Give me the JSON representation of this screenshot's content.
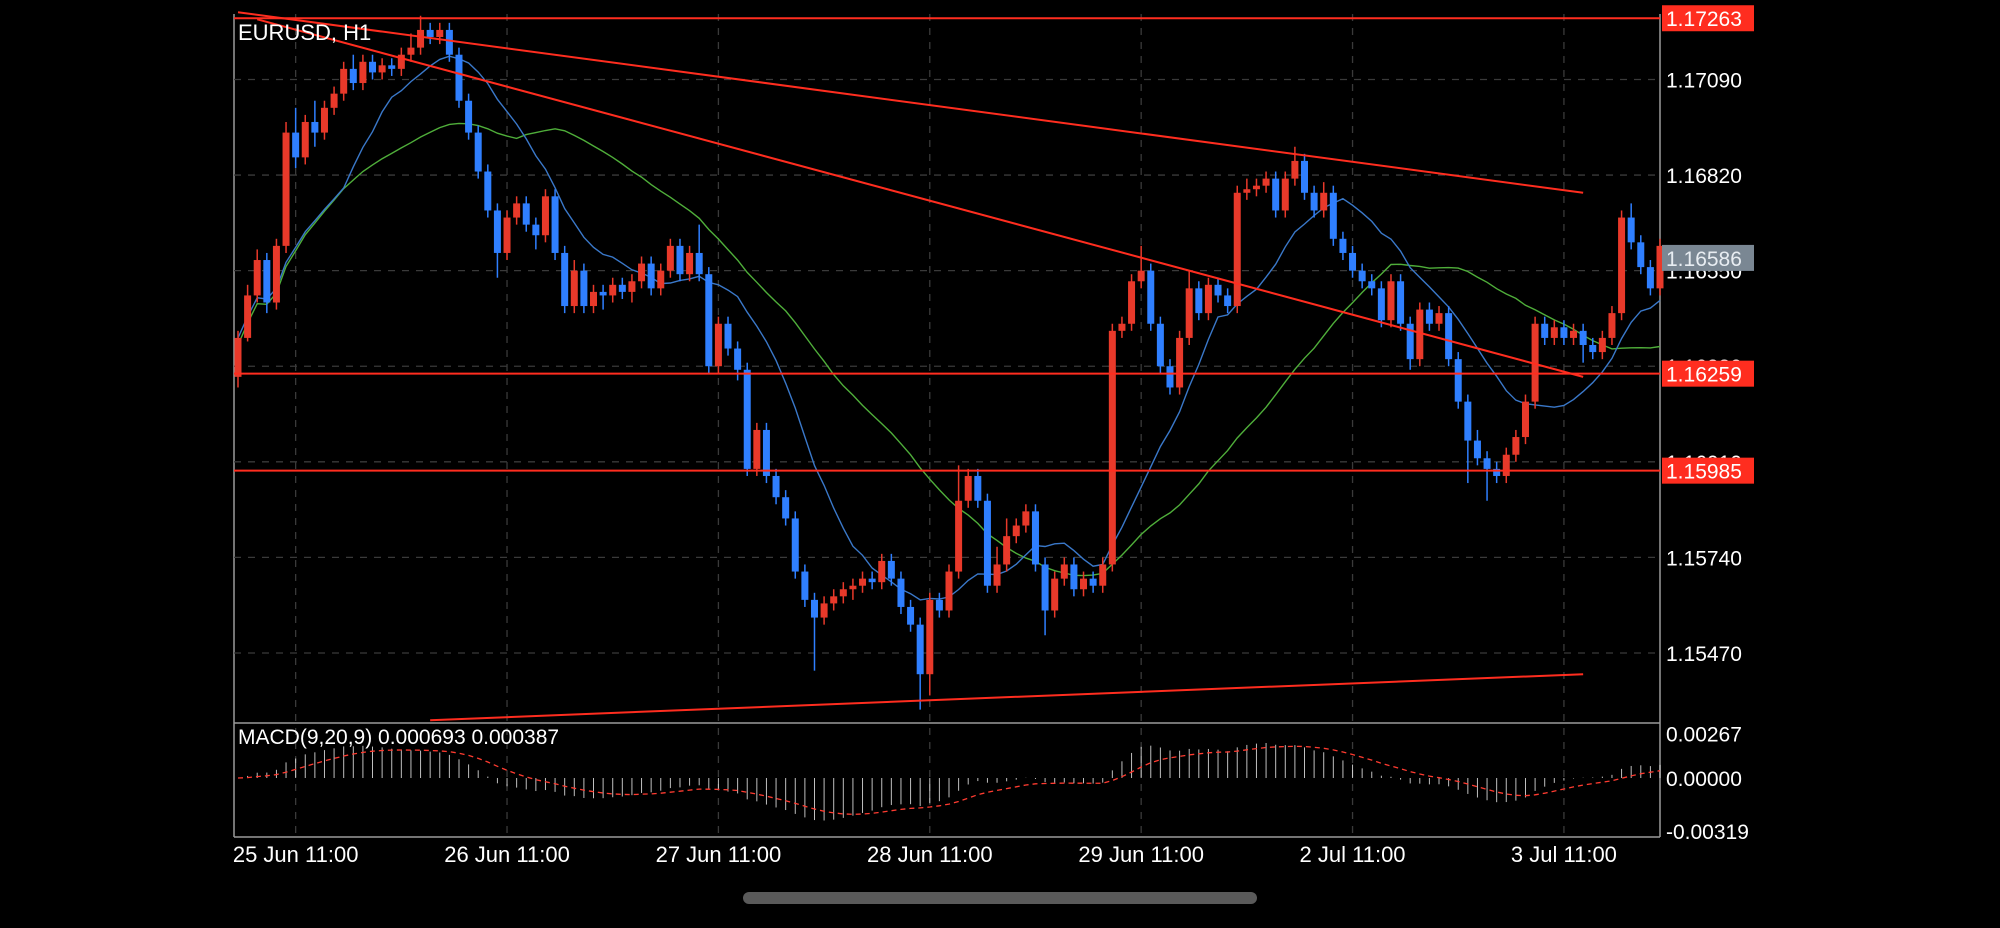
{
  "chart_data": [
    {
      "type": "candlestick",
      "symbol_label": "EURUSD, H1",
      "timeframe": "H1",
      "y_axis_ticks": [
        "1.17090",
        "1.16820",
        "1.16550",
        "1.16280",
        "1.16010",
        "1.15740",
        "1.15470"
      ],
      "ylim": [
        1.15275,
        1.17275
      ],
      "x_axis_labels": [
        "25 Jun 11:00",
        "26 Jun 11:00",
        "27 Jun 11:00",
        "28 Jun 11:00",
        "29 Jun 11:00",
        "2 Jul 11:00",
        "3 Jul 11:00"
      ],
      "price_tags": [
        {
          "price": 1.17263,
          "label": "1.17263",
          "kind": "line",
          "color": "#ff2d1f"
        },
        {
          "price": 1.16586,
          "label": "1.16586",
          "kind": "bid",
          "color": "#7a8793"
        },
        {
          "price": 1.16259,
          "label": "1.16259",
          "kind": "line",
          "color": "#ff2d1f"
        },
        {
          "price": 1.15985,
          "label": "1.15985",
          "kind": "line",
          "color": "#ff2d1f"
        }
      ],
      "horizontal_lines": [
        1.17263,
        1.16259,
        1.15985
      ],
      "trendlines": [
        {
          "from": [
            0,
            1.1728
          ],
          "to": [
            140,
            1.1677
          ]
        },
        {
          "from": [
            2,
            1.1726
          ],
          "to": [
            140,
            1.1625
          ]
        },
        {
          "from": [
            20,
            1.1528
          ],
          "to": [
            140,
            1.1541
          ]
        }
      ],
      "candles": [
        [
          1.1625,
          1.1636,
          1.1622,
          1.1638
        ],
        [
          1.1636,
          1.1648,
          1.1635,
          1.1651
        ],
        [
          1.1648,
          1.1658,
          1.1646,
          1.1661
        ],
        [
          1.1658,
          1.1646,
          1.1643,
          1.166
        ],
        [
          1.1646,
          1.1662,
          1.1644,
          1.1664
        ],
        [
          1.1662,
          1.1694,
          1.166,
          1.1697
        ],
        [
          1.1694,
          1.1687,
          1.1684,
          1.1701
        ],
        [
          1.1687,
          1.1697,
          1.1685,
          1.1699
        ],
        [
          1.1697,
          1.1694,
          1.169,
          1.1703
        ],
        [
          1.1694,
          1.1701,
          1.1692,
          1.1703
        ],
        [
          1.1701,
          1.1705,
          1.1699,
          1.1707
        ],
        [
          1.1705,
          1.1712,
          1.1703,
          1.1714
        ],
        [
          1.1712,
          1.1708,
          1.1706,
          1.1716
        ],
        [
          1.1708,
          1.1714,
          1.1706,
          1.1716
        ],
        [
          1.1714,
          1.1711,
          1.1709,
          1.1716
        ],
        [
          1.1711,
          1.1713,
          1.1709,
          1.1715
        ],
        [
          1.1713,
          1.1712,
          1.171,
          1.1715
        ],
        [
          1.1712,
          1.1716,
          1.171,
          1.1718
        ],
        [
          1.1716,
          1.1718,
          1.1714,
          1.1722
        ],
        [
          1.1718,
          1.1723,
          1.1716,
          1.1727
        ],
        [
          1.1723,
          1.1721,
          1.1719,
          1.1725
        ],
        [
          1.1721,
          1.1723,
          1.1719,
          1.1725
        ],
        [
          1.1723,
          1.1716,
          1.1714,
          1.1725
        ],
        [
          1.1716,
          1.1703,
          1.1701,
          1.1718
        ],
        [
          1.1703,
          1.1694,
          1.1692,
          1.1705
        ],
        [
          1.1694,
          1.1683,
          1.1681,
          1.1696
        ],
        [
          1.1683,
          1.1672,
          1.167,
          1.1685
        ],
        [
          1.1672,
          1.166,
          1.1653,
          1.1674
        ],
        [
          1.166,
          1.167,
          1.1658,
          1.1672
        ],
        [
          1.167,
          1.1674,
          1.1668,
          1.1676
        ],
        [
          1.1674,
          1.1668,
          1.1666,
          1.1676
        ],
        [
          1.1668,
          1.1665,
          1.1661,
          1.167
        ],
        [
          1.1665,
          1.1676,
          1.1663,
          1.1678
        ],
        [
          1.1676,
          1.166,
          1.1658,
          1.1678
        ],
        [
          1.166,
          1.1645,
          1.1643,
          1.1662
        ],
        [
          1.1645,
          1.1655,
          1.1643,
          1.1658
        ],
        [
          1.1655,
          1.1645,
          1.1643,
          1.1657
        ],
        [
          1.1645,
          1.1649,
          1.1643,
          1.1651
        ],
        [
          1.1649,
          1.1648,
          1.1644,
          1.1651
        ],
        [
          1.1648,
          1.1651,
          1.1646,
          1.1653
        ],
        [
          1.1651,
          1.1649,
          1.1647,
          1.1653
        ],
        [
          1.1649,
          1.1652,
          1.1646,
          1.1654
        ],
        [
          1.1652,
          1.1657,
          1.165,
          1.1659
        ],
        [
          1.1657,
          1.165,
          1.1648,
          1.1659
        ],
        [
          1.165,
          1.1655,
          1.1648,
          1.1657
        ],
        [
          1.1655,
          1.1662,
          1.1653,
          1.1664
        ],
        [
          1.1662,
          1.1654,
          1.1652,
          1.1664
        ],
        [
          1.1654,
          1.166,
          1.1652,
          1.1662
        ],
        [
          1.166,
          1.1654,
          1.1652,
          1.1668
        ],
        [
          1.1654,
          1.1628,
          1.1626,
          1.1656
        ],
        [
          1.1628,
          1.164,
          1.1626,
          1.1642
        ],
        [
          1.164,
          1.1633,
          1.1631,
          1.1642
        ],
        [
          1.1633,
          1.1627,
          1.1624,
          1.1635
        ],
        [
          1.1627,
          1.1599,
          1.1597,
          1.1629
        ],
        [
          1.1599,
          1.161,
          1.1597,
          1.1612
        ],
        [
          1.161,
          1.1597,
          1.1595,
          1.1612
        ],
        [
          1.1597,
          1.1591,
          1.1589,
          1.1599
        ],
        [
          1.1591,
          1.1585,
          1.1583,
          1.1593
        ],
        [
          1.1585,
          1.157,
          1.1568,
          1.1587
        ],
        [
          1.157,
          1.1562,
          1.156,
          1.1572
        ],
        [
          1.1562,
          1.1557,
          1.1542,
          1.1564
        ],
        [
          1.1557,
          1.1561,
          1.1555,
          1.1563
        ],
        [
          1.1561,
          1.1563,
          1.1559,
          1.1565
        ],
        [
          1.1563,
          1.1565,
          1.1561,
          1.1567
        ],
        [
          1.1565,
          1.1566,
          1.1562,
          1.1568
        ],
        [
          1.1566,
          1.1568,
          1.1564,
          1.157
        ],
        [
          1.1568,
          1.1567,
          1.1565,
          1.157
        ],
        [
          1.1567,
          1.1573,
          1.1565,
          1.1575
        ],
        [
          1.1573,
          1.1568,
          1.1566,
          1.1575
        ],
        [
          1.1568,
          1.156,
          1.1558,
          1.157
        ],
        [
          1.156,
          1.1555,
          1.1553,
          1.1562
        ],
        [
          1.1555,
          1.1541,
          1.1531,
          1.1557
        ],
        [
          1.1541,
          1.1562,
          1.1535,
          1.1564
        ],
        [
          1.1562,
          1.1559,
          1.1557,
          1.1564
        ],
        [
          1.1559,
          1.157,
          1.1557,
          1.1572
        ],
        [
          1.157,
          1.159,
          1.1568,
          1.16
        ],
        [
          1.159,
          1.1597,
          1.1588,
          1.1599
        ],
        [
          1.1597,
          1.159,
          1.1588,
          1.1599
        ],
        [
          1.159,
          1.1566,
          1.1564,
          1.1592
        ],
        [
          1.1566,
          1.1572,
          1.1564,
          1.1577
        ],
        [
          1.1572,
          1.158,
          1.157,
          1.1585
        ],
        [
          1.158,
          1.1583,
          1.1578,
          1.1585
        ],
        [
          1.1583,
          1.1587,
          1.1581,
          1.1589
        ],
        [
          1.1587,
          1.1572,
          1.157,
          1.1589
        ],
        [
          1.1572,
          1.1559,
          1.1552,
          1.1574
        ],
        [
          1.1559,
          1.1568,
          1.1557,
          1.157
        ],
        [
          1.1568,
          1.1572,
          1.1566,
          1.1574
        ],
        [
          1.1572,
          1.1565,
          1.1563,
          1.1574
        ],
        [
          1.1565,
          1.1568,
          1.1563,
          1.157
        ],
        [
          1.1568,
          1.1566,
          1.1564,
          1.157
        ],
        [
          1.1566,
          1.1572,
          1.1564,
          1.1574
        ],
        [
          1.1572,
          1.1638,
          1.157,
          1.164
        ],
        [
          1.1638,
          1.164,
          1.1636,
          1.1642
        ],
        [
          1.164,
          1.1652,
          1.1638,
          1.1654
        ],
        [
          1.1652,
          1.1655,
          1.165,
          1.1662
        ],
        [
          1.1655,
          1.164,
          1.1638,
          1.1657
        ],
        [
          1.164,
          1.1628,
          1.1626,
          1.1642
        ],
        [
          1.1628,
          1.1622,
          1.162,
          1.163
        ],
        [
          1.1622,
          1.1636,
          1.162,
          1.1638
        ],
        [
          1.1636,
          1.165,
          1.1634,
          1.1655
        ],
        [
          1.165,
          1.1643,
          1.1641,
          1.1652
        ],
        [
          1.1643,
          1.1651,
          1.1641,
          1.1653
        ],
        [
          1.1651,
          1.1648,
          1.1646,
          1.1653
        ],
        [
          1.1648,
          1.1645,
          1.1643,
          1.165
        ],
        [
          1.1645,
          1.1677,
          1.1643,
          1.1679
        ],
        [
          1.1677,
          1.1678,
          1.1675,
          1.1681
        ],
        [
          1.1678,
          1.1679,
          1.1676,
          1.1681
        ],
        [
          1.1679,
          1.1681,
          1.1677,
          1.1683
        ],
        [
          1.1681,
          1.1672,
          1.167,
          1.1683
        ],
        [
          1.1672,
          1.1681,
          1.167,
          1.1683
        ],
        [
          1.1681,
          1.1686,
          1.1679,
          1.169
        ],
        [
          1.1686,
          1.1677,
          1.1675,
          1.1688
        ],
        [
          1.1677,
          1.1672,
          1.167,
          1.1679
        ],
        [
          1.1672,
          1.1677,
          1.167,
          1.168
        ],
        [
          1.1677,
          1.1664,
          1.1662,
          1.1679
        ],
        [
          1.1664,
          1.166,
          1.1658,
          1.1666
        ],
        [
          1.166,
          1.1655,
          1.1653,
          1.1662
        ],
        [
          1.1655,
          1.1652,
          1.165,
          1.1657
        ],
        [
          1.1652,
          1.165,
          1.1648,
          1.1654
        ],
        [
          1.165,
          1.1641,
          1.1639,
          1.1652
        ],
        [
          1.1641,
          1.1652,
          1.1639,
          1.1654
        ],
        [
          1.1652,
          1.164,
          1.1638,
          1.1654
        ],
        [
          1.164,
          1.163,
          1.1627,
          1.1642
        ],
        [
          1.163,
          1.1644,
          1.1628,
          1.1646
        ],
        [
          1.1644,
          1.164,
          1.1638,
          1.1646
        ],
        [
          1.164,
          1.1643,
          1.1638,
          1.1645
        ],
        [
          1.1643,
          1.163,
          1.1628,
          1.1645
        ],
        [
          1.163,
          1.1618,
          1.1616,
          1.1632
        ],
        [
          1.1618,
          1.1607,
          1.1595,
          1.162
        ],
        [
          1.1607,
          1.1602,
          1.16,
          1.161
        ],
        [
          1.1602,
          1.1599,
          1.159,
          1.1604
        ],
        [
          1.1599,
          1.1597,
          1.1595,
          1.1601
        ],
        [
          1.1597,
          1.1603,
          1.1595,
          1.1605
        ],
        [
          1.1603,
          1.1608,
          1.1601,
          1.161
        ],
        [
          1.1608,
          1.1618,
          1.1606,
          1.162
        ],
        [
          1.1618,
          1.164,
          1.1616,
          1.1642
        ],
        [
          1.164,
          1.1636,
          1.1634,
          1.1642
        ],
        [
          1.1636,
          1.1639,
          1.1634,
          1.1641
        ],
        [
          1.1639,
          1.1636,
          1.1634,
          1.1641
        ],
        [
          1.1636,
          1.1638,
          1.1634,
          1.164
        ],
        [
          1.1638,
          1.1634,
          1.1629,
          1.164
        ],
        [
          1.1634,
          1.1632,
          1.163,
          1.1636
        ],
        [
          1.1632,
          1.1636,
          1.163,
          1.1638
        ],
        [
          1.1636,
          1.1643,
          1.1634,
          1.1645
        ],
        [
          1.1643,
          1.167,
          1.1641,
          1.1672
        ],
        [
          1.167,
          1.1663,
          1.1661,
          1.1674
        ],
        [
          1.1663,
          1.1656,
          1.1654,
          1.1665
        ],
        [
          1.1656,
          1.165,
          1.1648,
          1.1658
        ],
        [
          1.165,
          1.1662,
          1.1648,
          1.1664
        ]
      ],
      "bull_color": "#e8392a",
      "bear_color": "#2f7fff",
      "ma_fast_color": "#3a78c9",
      "ma_slow_color": "#4fae3a",
      "trendline_color": "#ff2d1f"
    },
    {
      "type": "histogram",
      "label": "MACD(9,20,9) 0.000693 0.000387",
      "y_axis_ticks": [
        "0.00267",
        "0.00000",
        "-0.00319"
      ],
      "ylim": [
        -0.00355,
        0.00325
      ],
      "histogram_color": "#ffffff",
      "signal_color": "#ff3b30"
    }
  ]
}
